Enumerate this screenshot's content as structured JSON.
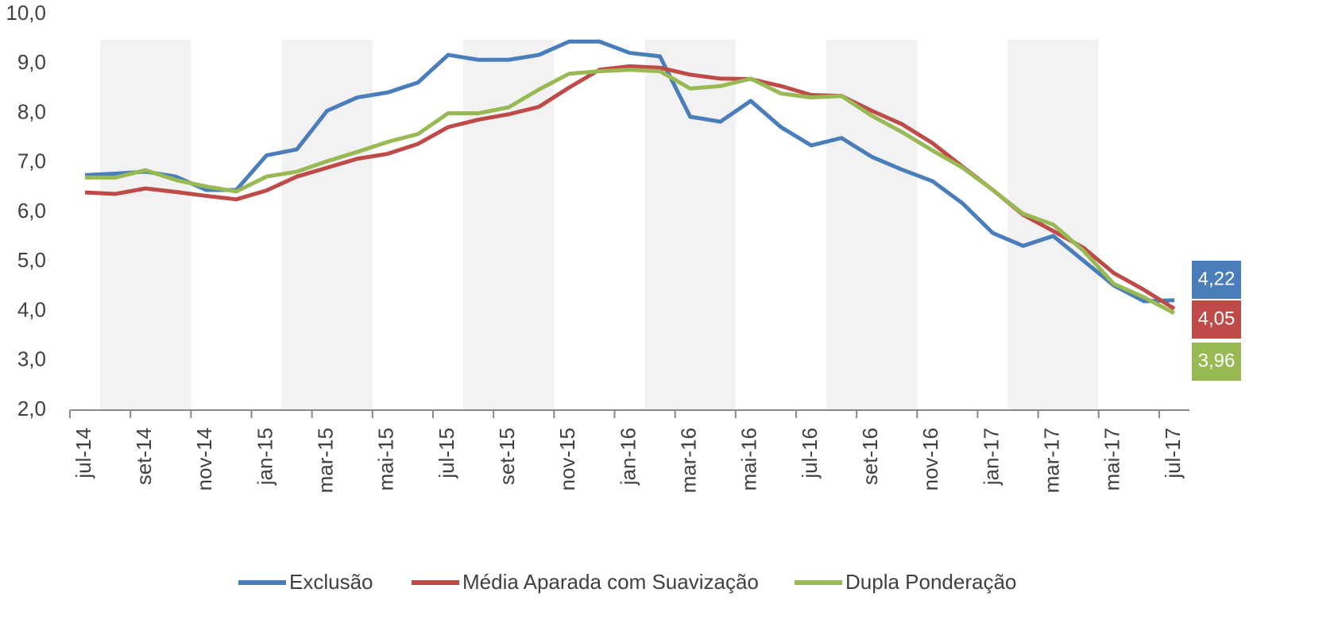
{
  "chart_data": {
    "type": "line",
    "categories": [
      "jul-14",
      null,
      "set-14",
      null,
      "nov-14",
      null,
      "jan-15",
      null,
      "mar-15",
      null,
      "mai-15",
      null,
      "jul-15",
      null,
      "set-15",
      null,
      "nov-15",
      null,
      "jan-16",
      null,
      "mar-16",
      null,
      "mai-16",
      null,
      "jul-16",
      null,
      "set-16",
      null,
      "nov-16",
      null,
      "jan-17",
      null,
      "mar-17",
      null,
      "mai-17",
      null,
      "jul-17"
    ],
    "series": [
      {
        "name": "Exclusão",
        "color": "#4a7ebb",
        "values": [
          6.75,
          6.78,
          6.82,
          6.72,
          6.45,
          6.45,
          7.15,
          7.27,
          8.05,
          8.32,
          8.42,
          8.62,
          9.18,
          9.08,
          9.08,
          9.18,
          9.45,
          9.45,
          9.22,
          9.15,
          7.93,
          7.83,
          8.25,
          7.72,
          7.35,
          7.5,
          7.12,
          6.86,
          6.63,
          6.18,
          5.58,
          5.32,
          5.52,
          5.02,
          4.52,
          4.2,
          4.22
        ],
        "value_labels": [
          null,
          null,
          null,
          null,
          null,
          null,
          null,
          null,
          null,
          null,
          null,
          null,
          null,
          null,
          null,
          null,
          null,
          null,
          null,
          null,
          null,
          null,
          null,
          null,
          null,
          null,
          null,
          null,
          null,
          null,
          null,
          null,
          null,
          null,
          null,
          null,
          "4,22"
        ]
      },
      {
        "name": "Média Aparada com Suavização",
        "color": "#be4b48",
        "values": [
          6.4,
          6.37,
          6.48,
          6.41,
          6.33,
          6.26,
          6.44,
          6.72,
          6.9,
          7.08,
          7.18,
          7.38,
          7.72,
          7.87,
          7.98,
          8.13,
          8.52,
          8.88,
          8.95,
          8.92,
          8.78,
          8.7,
          8.69,
          8.55,
          8.37,
          8.35,
          8.05,
          7.78,
          7.4,
          6.92,
          6.45,
          5.95,
          5.62,
          5.28,
          4.77,
          4.43,
          4.05
        ],
        "value_labels": [
          null,
          null,
          null,
          null,
          null,
          null,
          null,
          null,
          null,
          null,
          null,
          null,
          null,
          null,
          null,
          null,
          null,
          null,
          null,
          null,
          null,
          null,
          null,
          null,
          null,
          null,
          null,
          null,
          null,
          null,
          null,
          null,
          null,
          null,
          null,
          null,
          "4,05"
        ]
      },
      {
        "name": "Dupla Ponderação",
        "color": "#98b954",
        "values": [
          6.7,
          6.7,
          6.85,
          6.65,
          6.52,
          6.42,
          6.72,
          6.82,
          7.03,
          7.22,
          7.42,
          7.58,
          8.0,
          8.0,
          8.12,
          8.48,
          8.8,
          8.85,
          8.88,
          8.85,
          8.5,
          8.55,
          8.7,
          8.4,
          8.32,
          8.35,
          7.95,
          7.62,
          7.25,
          6.9,
          6.45,
          5.97,
          5.75,
          5.22,
          4.55,
          4.28,
          3.96
        ],
        "value_labels": [
          null,
          null,
          null,
          null,
          null,
          null,
          null,
          null,
          null,
          null,
          null,
          null,
          null,
          null,
          null,
          null,
          null,
          null,
          null,
          null,
          null,
          null,
          null,
          null,
          null,
          null,
          null,
          null,
          null,
          null,
          null,
          null,
          null,
          null,
          null,
          null,
          "3,96"
        ]
      }
    ],
    "ylim": [
      2,
      10
    ],
    "yticks": [
      {
        "value": 2,
        "label": "2,0"
      },
      {
        "value": 3,
        "label": "3,0"
      },
      {
        "value": 4,
        "label": "4,0"
      },
      {
        "value": 5,
        "label": "5,0"
      },
      {
        "value": 6,
        "label": "6,0"
      },
      {
        "value": 7,
        "label": "7,0"
      },
      {
        "value": 8,
        "label": "8,0"
      },
      {
        "value": 9,
        "label": "9,0"
      },
      {
        "value": 10,
        "label": "10,0"
      }
    ],
    "legend": "bottom"
  }
}
